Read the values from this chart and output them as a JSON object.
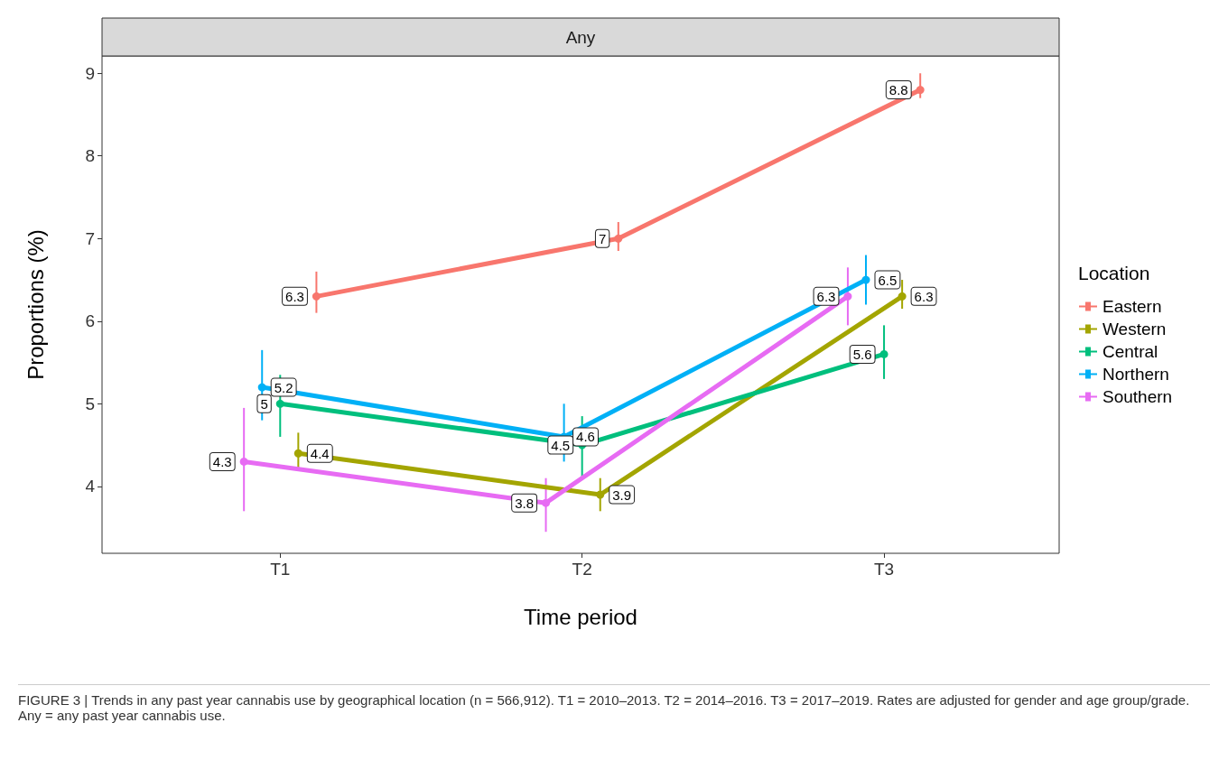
{
  "chart_data": {
    "type": "line",
    "title": "Any",
    "xlabel": "Time period",
    "ylabel": "Proportions (%)",
    "legend_title": "Location",
    "categories": [
      "T1",
      "T2",
      "T3"
    ],
    "series": [
      {
        "name": "Eastern",
        "color": "#f8766d",
        "values": [
          6.3,
          7,
          8.8
        ],
        "errors": [
          [
            6.1,
            6.6
          ],
          [
            6.85,
            7.2
          ],
          [
            8.7,
            9.0
          ]
        ]
      },
      {
        "name": "Western",
        "color": "#a3a500",
        "values": [
          4.4,
          3.9,
          6.3
        ],
        "errors": [
          [
            4.2,
            4.65
          ],
          [
            3.7,
            4.1
          ],
          [
            6.15,
            6.5
          ]
        ]
      },
      {
        "name": "Central",
        "color": "#00bf7d",
        "values": [
          5,
          4.5,
          5.6
        ],
        "errors": [
          [
            4.6,
            5.35
          ],
          [
            4.1,
            4.85
          ],
          [
            5.3,
            5.95
          ]
        ]
      },
      {
        "name": "Northern",
        "color": "#00b0f6",
        "values": [
          5.2,
          4.6,
          6.5
        ],
        "errors": [
          [
            4.8,
            5.65
          ],
          [
            4.3,
            5.0
          ],
          [
            6.2,
            6.8
          ]
        ]
      },
      {
        "name": "Southern",
        "color": "#e76bf3",
        "values": [
          4.3,
          3.8,
          6.3
        ],
        "errors": [
          [
            3.7,
            4.95
          ],
          [
            3.45,
            4.1
          ],
          [
            5.95,
            6.65
          ]
        ]
      }
    ],
    "ylim": [
      3.19,
      9.21
    ],
    "yticks": [
      4,
      5,
      6,
      7,
      8,
      9
    ],
    "grid": false,
    "legend": "right",
    "marker": "circle",
    "line_style": "solid",
    "data_labels": true,
    "annotations": [
      "FIGURE 3 | Trends in any past year cannabis use by geographical location (n = 566,912). T1 = 2010–2013. T2 = 2014–2016. T3 = 2017–2019. Rates are adjusted for gender and age group/grade. Any = any past year cannabis use."
    ]
  }
}
